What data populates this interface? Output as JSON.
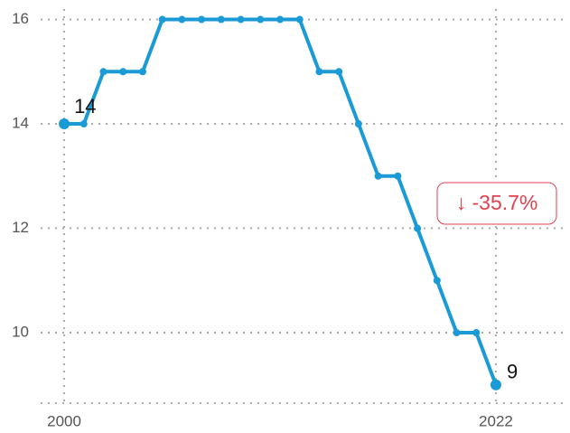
{
  "chart_data": {
    "type": "line",
    "x": [
      2000,
      2001,
      2002,
      2003,
      2004,
      2005,
      2006,
      2007,
      2008,
      2009,
      2010,
      2011,
      2012,
      2013,
      2014,
      2015,
      2016,
      2017,
      2018,
      2019,
      2020,
      2021,
      2022
    ],
    "series": [
      {
        "color": "#1a9ad6",
        "values": [
          14,
          14,
          15,
          15,
          15,
          16,
          16,
          16,
          16,
          16,
          16,
          16,
          16,
          15,
          15,
          14,
          13,
          13,
          12,
          11,
          10,
          10,
          9
        ]
      }
    ],
    "xlim": [
      1998.8,
      2025.5
    ],
    "ylim": [
      8.65,
      16.2
    ],
    "xticks": [
      2000,
      2022
    ],
    "yticks": [
      10,
      12,
      14,
      16
    ],
    "grid": true,
    "annotation": "↓ -35.7%"
  }
}
